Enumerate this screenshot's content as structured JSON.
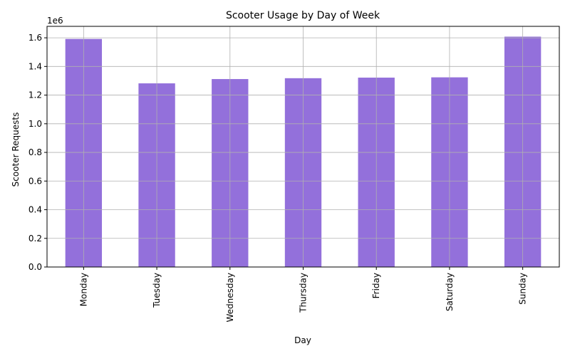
{
  "chart_data": {
    "type": "bar",
    "title": "Scooter Usage by Day of Week",
    "xlabel": "Day",
    "ylabel": "Scooter Requests",
    "y_offset_label": "1e6",
    "categories": [
      "Monday",
      "Tuesday",
      "Wednesday",
      "Thursday",
      "Friday",
      "Saturday",
      "Sunday"
    ],
    "values": [
      1592000,
      1282000,
      1312000,
      1318000,
      1322000,
      1324000,
      1608000
    ],
    "ylim": [
      0,
      1680000
    ],
    "y_ticks": [
      0,
      200000,
      400000,
      600000,
      800000,
      1000000,
      1200000,
      1400000,
      1600000
    ],
    "y_tick_labels": [
      "0.0",
      "0.2",
      "0.4",
      "0.6",
      "0.8",
      "1.0",
      "1.2",
      "1.4",
      "1.6"
    ],
    "grid": true,
    "bar_color": "#9370DB",
    "grid_color": "#b0b0b0"
  }
}
